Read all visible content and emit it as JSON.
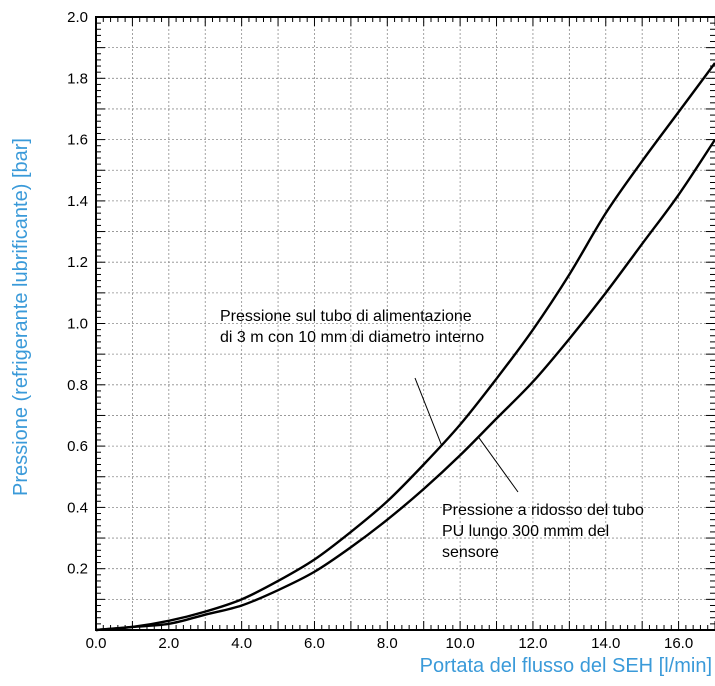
{
  "chart_data": {
    "type": "line",
    "title": "",
    "xlabel": "Portata del flusso del SEH [l/min]",
    "ylabel": "Pressione (refrigerante lubrificante) [bar]",
    "xlim": [
      0,
      17
    ],
    "ylim": [
      0,
      2.0
    ],
    "x_ticks": [
      "0.0",
      "2.0",
      "4.0",
      "6.0",
      "8.0",
      "10.0",
      "12.0",
      "14.0",
      "16.0"
    ],
    "y_ticks": [
      "0.2",
      "0.4",
      "0.6",
      "0.8",
      "1.0",
      "1.2",
      "1.4",
      "1.6",
      "1.8",
      "2.0"
    ],
    "grid": true,
    "axis_title_color": "#3a9ad9",
    "line_color": "#000000",
    "grid_color": "#8c8c8c",
    "series": [
      {
        "x": [
          0,
          1,
          2,
          3,
          4,
          5,
          6,
          7,
          8,
          9,
          10,
          11,
          12,
          13,
          14,
          15,
          16,
          17
        ],
        "y": [
          0.0,
          0.01,
          0.03,
          0.06,
          0.1,
          0.16,
          0.23,
          0.32,
          0.42,
          0.54,
          0.67,
          0.82,
          0.98,
          1.16,
          1.36,
          1.53,
          1.69,
          1.85
        ]
      },
      {
        "x": [
          0,
          1,
          2,
          3,
          4,
          5,
          6,
          7,
          8,
          9,
          10,
          11,
          12,
          13,
          14,
          15,
          16,
          17
        ],
        "y": [
          0.0,
          0.01,
          0.02,
          0.05,
          0.08,
          0.13,
          0.19,
          0.27,
          0.36,
          0.46,
          0.57,
          0.69,
          0.81,
          0.95,
          1.1,
          1.26,
          1.42,
          1.6
        ]
      }
    ],
    "annotations": [
      {
        "lines": [
          "Pressione sul tubo di alimentazione",
          "di 3 m con 10 mm di diametro interno"
        ],
        "series_index": 0,
        "point": [
          9.5,
          0.6
        ],
        "anchor_data": [
          8.1,
          0.8
        ]
      },
      {
        "lines": [
          "Pressione a ridosso del tubo",
          "PU lungo 300 mmm del",
          "sensore"
        ],
        "series_index": 1,
        "point": [
          10.5,
          0.63
        ],
        "anchor_data": [
          11.2,
          0.48
        ]
      }
    ]
  }
}
